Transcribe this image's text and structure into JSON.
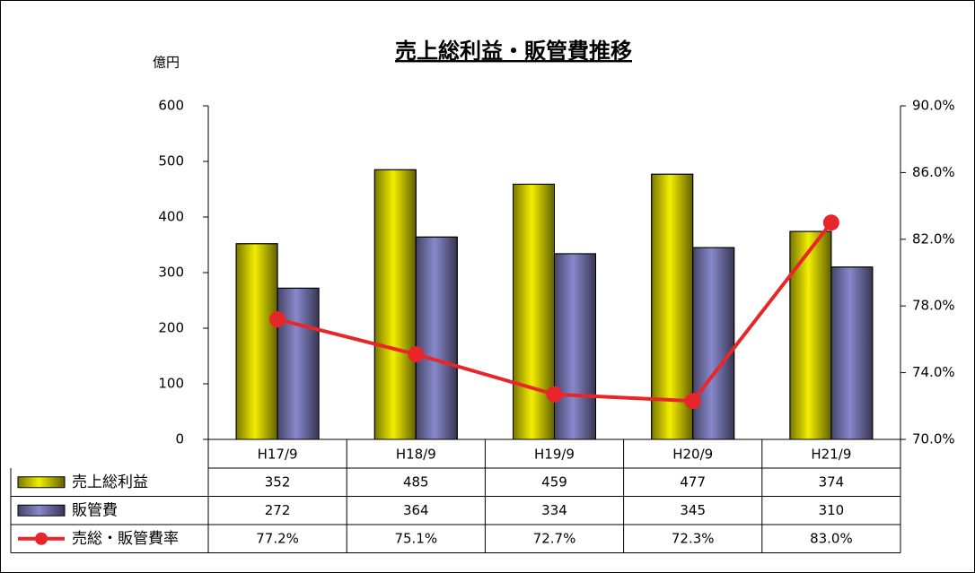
{
  "chart_data": {
    "type": "bar",
    "title": "売上総利益・販管費推移",
    "y_axis_label": "億円",
    "categories": [
      "H17/9",
      "H18/9",
      "H19/9",
      "H20/9",
      "H21/9"
    ],
    "series": [
      {
        "name": "売上総利益",
        "color": "#f2ee00",
        "values": [
          352,
          485,
          459,
          477,
          374
        ]
      },
      {
        "name": "販管費",
        "color": "#8888cc",
        "values": [
          272,
          364,
          334,
          345,
          310
        ]
      },
      {
        "name": "売総・販管費率",
        "color": "#e8262a",
        "type": "line",
        "axis": "y2",
        "values": [
          77.2,
          75.1,
          72.7,
          72.3,
          83.0
        ],
        "value_labels": [
          "77.2%",
          "75.1%",
          "72.7%",
          "72.3%",
          "83.0%"
        ]
      }
    ],
    "ylim": [
      0,
      600
    ],
    "yticks": [
      0,
      100,
      200,
      300,
      400,
      500,
      600
    ],
    "y2lim": [
      70,
      90
    ],
    "y2ticks": [
      {
        "value": 70,
        "label": "70.0%"
      },
      {
        "value": 74,
        "label": "74.0%"
      },
      {
        "value": 78,
        "label": "78.0%"
      },
      {
        "value": 82,
        "label": "82.0%"
      },
      {
        "value": 86,
        "label": "86.0%"
      },
      {
        "value": 90,
        "label": "90.0%"
      }
    ],
    "data_table": true
  }
}
